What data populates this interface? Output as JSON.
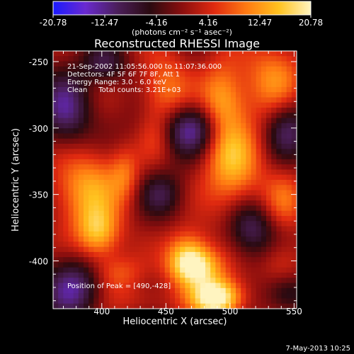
{
  "colorbar": {
    "ticks": [
      "-20.78",
      "-12.47",
      "-4.16",
      "4.16",
      "12.47",
      "20.78"
    ],
    "units": "(photons cm⁻² s⁻¹ asec⁻²)",
    "colors": [
      "#1a1aff",
      "#6a2ad0",
      "#4b1f5a",
      "#2a0a10",
      "#8a0e0e",
      "#e02a10",
      "#ff7a12",
      "#ffc21f",
      "#fff4c0"
    ]
  },
  "chart_data": {
    "type": "heatmap",
    "title": "Reconstructed RHESSI Image",
    "xlabel": "Heliocentric X (arcsec)",
    "ylabel": "Heliocentric Y (arcsec)",
    "xlim": [
      362,
      552
    ],
    "ylim": [
      -436,
      -242
    ],
    "x_ticks": [
      400,
      450,
      500,
      550
    ],
    "y_ticks": [
      -250,
      -300,
      -350,
      -400
    ],
    "x_tick_labels": [
      "400",
      "450",
      "500",
      "550"
    ],
    "y_tick_labels": [
      "-250",
      "-300",
      "-350",
      "-400"
    ],
    "value_range": [
      -20.78,
      20.78
    ],
    "info_lines": [
      "21-Sep-2002 11:05:56.000 to 11:07:36.000",
      "Detectors: 4F 5F 6F 7F 8F, Att 1",
      "Energy Range: 3.0 - 6.0 keV",
      "Clean     Total counts: 3.21E+03"
    ],
    "peak_text": "Position of Peak = [490,-428]",
    "blobs": [
      {
        "x": 490,
        "y": -428,
        "amp": 24,
        "sx": 14,
        "sy": 10
      },
      {
        "x": 467,
        "y": -398,
        "amp": 17,
        "sx": 12,
        "sy": 14
      },
      {
        "x": 477,
        "y": -405,
        "amp": 12,
        "sx": 14,
        "sy": 10
      },
      {
        "x": 503,
        "y": -325,
        "amp": 14,
        "sx": 16,
        "sy": 34
      },
      {
        "x": 493,
        "y": -285,
        "amp": 12,
        "sx": 12,
        "sy": 24
      },
      {
        "x": 450,
        "y": -275,
        "amp": 11,
        "sx": 14,
        "sy": 22
      },
      {
        "x": 442,
        "y": -305,
        "amp": 7,
        "sx": 10,
        "sy": 14
      },
      {
        "x": 535,
        "y": -262,
        "amp": 11,
        "sx": 16,
        "sy": 20
      },
      {
        "x": 388,
        "y": -345,
        "amp": 13,
        "sx": 20,
        "sy": 22
      },
      {
        "x": 397,
        "y": -380,
        "amp": 14,
        "sx": 12,
        "sy": 14
      },
      {
        "x": 412,
        "y": -410,
        "amp": 8,
        "sx": 14,
        "sy": 10
      },
      {
        "x": 418,
        "y": -335,
        "amp": 7,
        "sx": 8,
        "sy": 14
      },
      {
        "x": 542,
        "y": -355,
        "amp": 8,
        "sx": 12,
        "sy": 16
      },
      {
        "x": 540,
        "y": -400,
        "amp": 6,
        "sx": 12,
        "sy": 12
      },
      {
        "x": 430,
        "y": -430,
        "amp": 4,
        "sx": 20,
        "sy": 8
      },
      {
        "x": 470,
        "y": -300,
        "amp": -16,
        "sx": 24,
        "sy": 14
      },
      {
        "x": 372,
        "y": -287,
        "amp": -12,
        "sx": 14,
        "sy": 20
      },
      {
        "x": 515,
        "y": -375,
        "amp": -13,
        "sx": 14,
        "sy": 16
      },
      {
        "x": 545,
        "y": -300,
        "amp": -10,
        "sx": 12,
        "sy": 16
      },
      {
        "x": 447,
        "y": -350,
        "amp": -8,
        "sx": 12,
        "sy": 12
      },
      {
        "x": 378,
        "y": -420,
        "amp": -13,
        "sx": 16,
        "sy": 16
      },
      {
        "x": 402,
        "y": -252,
        "amp": -8,
        "sx": 12,
        "sy": 10
      },
      {
        "x": 545,
        "y": -425,
        "amp": -8,
        "sx": 12,
        "sy": 10
      }
    ]
  },
  "footer": {
    "timestamp": "7-May-2013 10:25"
  }
}
